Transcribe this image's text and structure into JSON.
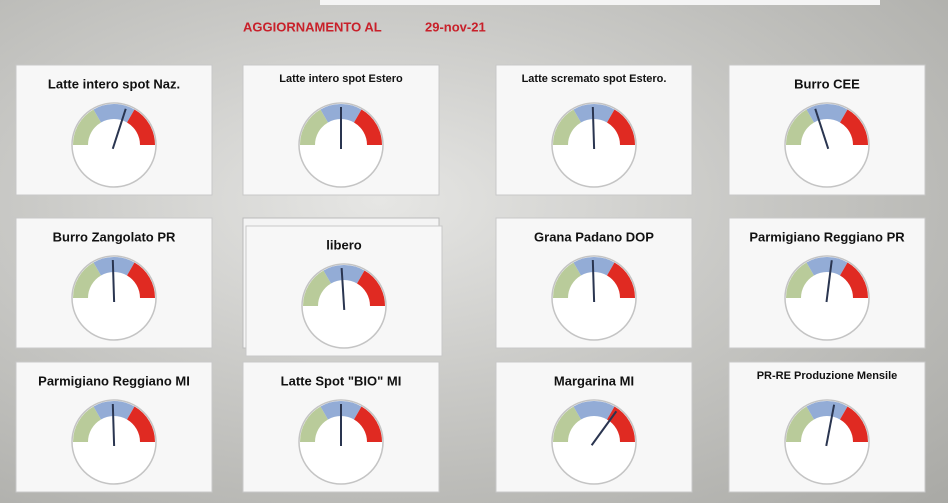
{
  "header": {
    "label": "AGGIORNAMENTO AL",
    "date": "29-nov-21"
  },
  "gauge_range": [
    0,
    100
  ],
  "zone_colors": [
    "#b9cb9a",
    "#93acd6",
    "#e02a22"
  ],
  "needle_color": "#2a3550",
  "gauges": [
    {
      "title": "Latte intero spot Naz.",
      "value": 60
    },
    {
      "title": "Latte intero spot Estero",
      "value": 50
    },
    {
      "title": "Latte scremato spot Estero.",
      "value": 49
    },
    {
      "title": "Burro CEE",
      "value": 40
    },
    {
      "title": "Burro Zangolato PR",
      "value": 49
    },
    {
      "title": "libero",
      "value": 48
    },
    {
      "title": "Grana Padano DOP",
      "value": 49
    },
    {
      "title": "Parmigiano Reggiano PR",
      "value": 54
    },
    {
      "title": "Parmigiano Reggiano MI",
      "value": 49
    },
    {
      "title": "Latte Spot \"BIO\" MI",
      "value": 50
    },
    {
      "title": "Margarina MI",
      "value": 70
    },
    {
      "title": "PR-RE Produzione Mensile",
      "value": 56
    }
  ]
}
